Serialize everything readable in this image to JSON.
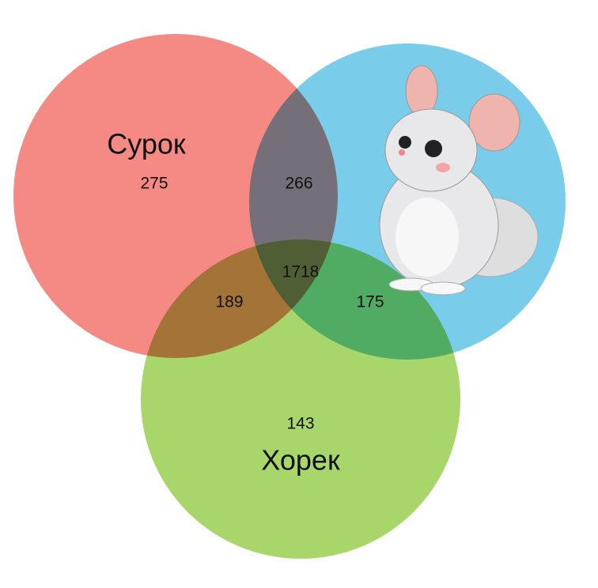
{
  "chart_data": {
    "type": "venn",
    "sets": [
      {
        "name": "Сурок",
        "color": "#f47f78"
      },
      {
        "name": null,
        "color": "#6ec9e8"
      },
      {
        "name": "Хорек",
        "color": "#a2d25e"
      }
    ],
    "regions": [
      {
        "value": 275
      },
      {
        "value": 266
      },
      {
        "value": 1718
      },
      {
        "value": 189
      },
      {
        "value": 175
      },
      {
        "value": 143
      }
    ]
  }
}
